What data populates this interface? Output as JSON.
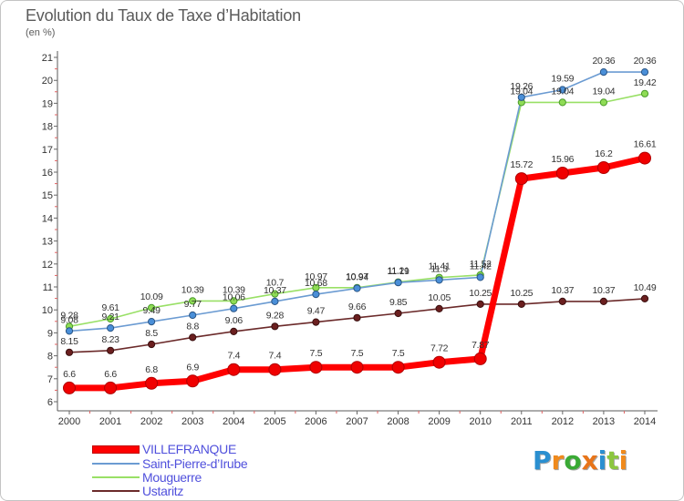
{
  "chart_data": {
    "type": "line",
    "title": "Evolution du Taux de Taxe d’Habitation",
    "subtitle": "(en %)",
    "xlabel": "",
    "ylabel": "",
    "categories": [
      "2000",
      "2001",
      "2002",
      "2003",
      "2004",
      "2005",
      "2006",
      "2007",
      "2008",
      "2009",
      "2010",
      "2011",
      "2012",
      "2013",
      "2014"
    ],
    "ylim": [
      6,
      21
    ],
    "yticks": [
      6,
      7,
      8,
      9,
      10,
      11,
      12,
      13,
      14,
      15,
      16,
      17,
      18,
      19,
      20,
      21
    ],
    "grid": false,
    "legend_position": "bottom-left",
    "series": [
      {
        "name": "VILLEFRANQUE",
        "color": "#ff0000",
        "marker_fill": "#f00000",
        "marker_stroke": "#b00000",
        "values": [
          6.6,
          6.6,
          6.8,
          6.9,
          7.4,
          7.4,
          7.5,
          7.5,
          7.5,
          7.72,
          7.87,
          15.72,
          15.96,
          16.2,
          16.61
        ]
      },
      {
        "name": "Saint-Pierre-d’Irube",
        "color": "#6b9bd2",
        "marker_fill": "#4a8fd8",
        "marker_stroke": "#2a5585",
        "values": [
          9.08,
          9.21,
          9.49,
          9.77,
          10.06,
          10.37,
          10.68,
          10.94,
          11.19,
          11.3,
          11.42,
          19.26,
          19.59,
          20.36,
          20.36
        ]
      },
      {
        "name": "Mouguerre",
        "color": "#99e066",
        "marker_fill": "#8fdc55",
        "marker_stroke": "#4a9a2a",
        "values": [
          9.28,
          9.61,
          10.09,
          10.39,
          10.39,
          10.7,
          10.97,
          10.97,
          11.21,
          11.41,
          11.52,
          19.04,
          19.04,
          19.04,
          19.42
        ]
      },
      {
        "name": "Ustaritz",
        "color": "#6b2a2a",
        "marker_fill": "#6b1f1f",
        "marker_stroke": "#3a0f0f",
        "values": [
          8.15,
          8.23,
          8.5,
          8.8,
          9.06,
          9.28,
          9.47,
          9.66,
          9.85,
          10.05,
          10.25,
          10.25,
          10.37,
          10.37,
          10.49
        ]
      }
    ]
  },
  "logo": {
    "letters": [
      "P",
      "r",
      "o",
      "x",
      "i",
      "t",
      "i"
    ],
    "colors": [
      "#2a8fd0",
      "#f08a1c",
      "#3aaa35",
      "#e8751a",
      "#2a8fd0",
      "#8cc63f",
      "#f08a1c"
    ]
  }
}
